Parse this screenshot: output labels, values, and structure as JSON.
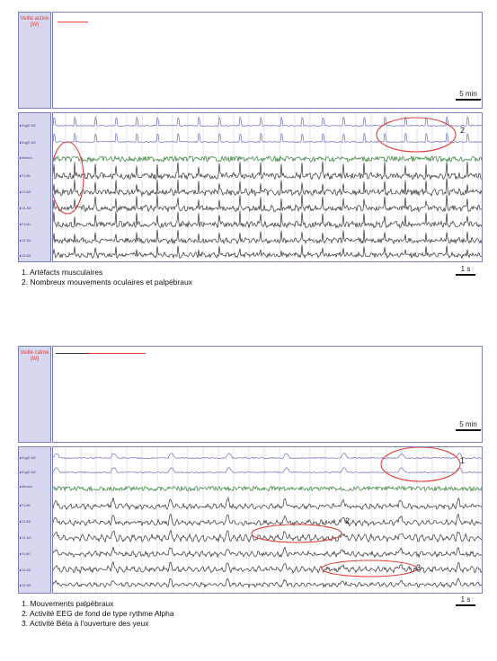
{
  "panels": [
    {
      "stage_label": "Veille active (W)",
      "hypnogram_scale": "5 min",
      "trace_scale": "1 s",
      "channels": [
        "Eog(E-M2",
        "Eog(E-M2",
        "Menton",
        "F3-M2",
        "C3-M2",
        "O1-M2",
        "F4-M1",
        "C4-M1",
        "O2-M1"
      ],
      "callouts": [
        "2"
      ],
      "captions": [
        "1. Artéfacts musculaires",
        "2. Nombreux mouvements oculaires et palpébraux"
      ]
    },
    {
      "stage_label": "Veille calme (W)",
      "hypnogram_scale": "5 min",
      "trace_scale": "1 s",
      "channels": [
        "Eog(E-M2",
        "Eog(E-M2",
        "Menton",
        "F3-M2",
        "C3-M2",
        "O1-M2",
        "F4-M1",
        "C4-M1",
        "O2-M1"
      ],
      "callouts": [
        "1",
        "2",
        "3"
      ],
      "captions": [
        "1. Mouvements palpébraux",
        "2. Activité EEG de fond de type rythme Alpha",
        "3. Activité Béta à l'ouverture des yeux"
      ]
    }
  ],
  "colors": {
    "eog": "#6a6fc0",
    "emg": "#2e7d32",
    "eeg": "#333333",
    "annotation": "#e2413a",
    "frame": "#7b7fb8"
  }
}
